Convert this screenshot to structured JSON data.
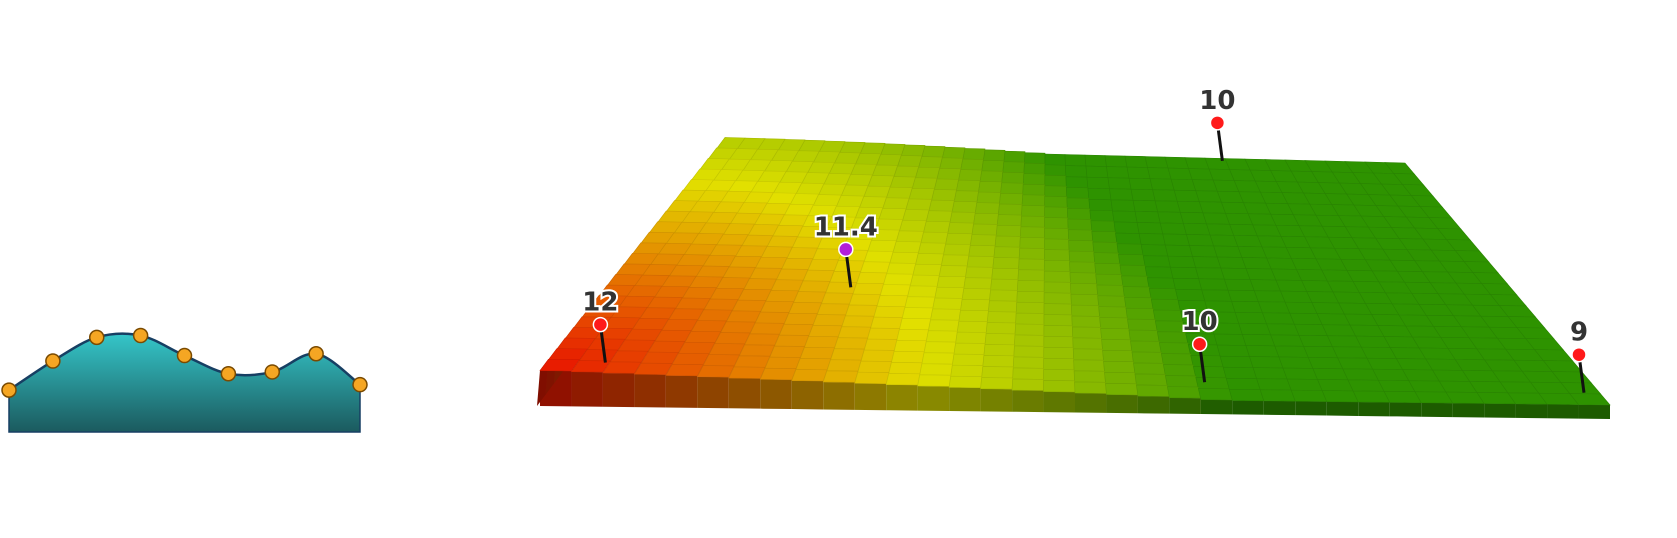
{
  "chart_data": [
    {
      "type": "area",
      "x": [
        0,
        1,
        2,
        3,
        4,
        5,
        6,
        7,
        8
      ],
      "values": [
        2.3,
        3.9,
        5.2,
        5.3,
        4.2,
        3.2,
        3.3,
        4.3,
        2.6
      ],
      "ylim": [
        0,
        10
      ],
      "colors": {
        "fill_top": "#35c6c9",
        "fill_bottom": "#1b5a5e",
        "line": "#173f63",
        "marker": "#f5a623",
        "marker_edge": "#7a4a00"
      }
    },
    {
      "type": "heatmap",
      "note_pins": [
        {
          "label": "12",
          "u": 0.055,
          "v": 0.04,
          "color": "#ff1a1a"
        },
        {
          "label": "11.4",
          "u": 0.26,
          "v": 0.39,
          "color": "#b21fd9"
        },
        {
          "label": "10",
          "u": 0.73,
          "v": 0.99,
          "color": "#ff1a1a"
        },
        {
          "label": "10",
          "u": 0.625,
          "v": 0.07,
          "color": "#ff1a1a"
        },
        {
          "label": "9",
          "u": 0.985,
          "v": 0.05,
          "color": "#ff1a1a"
        }
      ],
      "value_range": [
        9,
        12
      ],
      "colors": {
        "high": "#e81200",
        "mid": "#e2e000",
        "low": "#2e9300"
      }
    }
  ]
}
